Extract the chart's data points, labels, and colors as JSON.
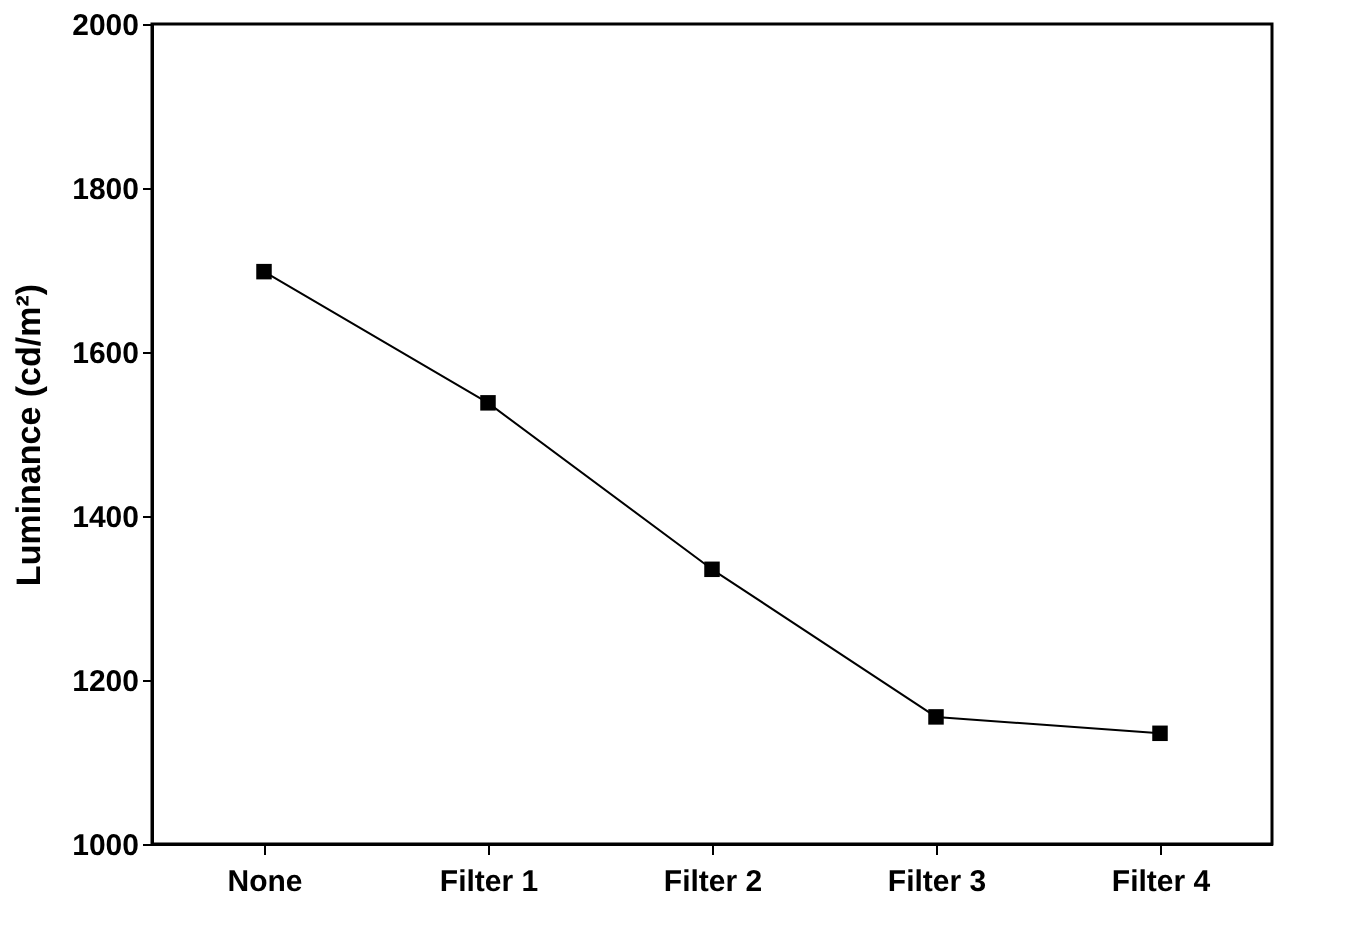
{
  "chart_data": {
    "type": "line",
    "ylabel": "Luminance (cd/m²)",
    "categories": [
      "None",
      "Filter 1",
      "Filter 2",
      "Filter 3",
      "Filter 4"
    ],
    "series": [
      {
        "color": "#000000",
        "values": [
          1698,
          1538,
          1335,
          1155,
          1135
        ]
      }
    ],
    "ylim": [
      1000,
      2000
    ],
    "yticks": [
      1000,
      1200,
      1400,
      1600,
      1800,
      2000
    ],
    "marker": "square",
    "line_style": "solid",
    "grid": false,
    "legend": false
  }
}
